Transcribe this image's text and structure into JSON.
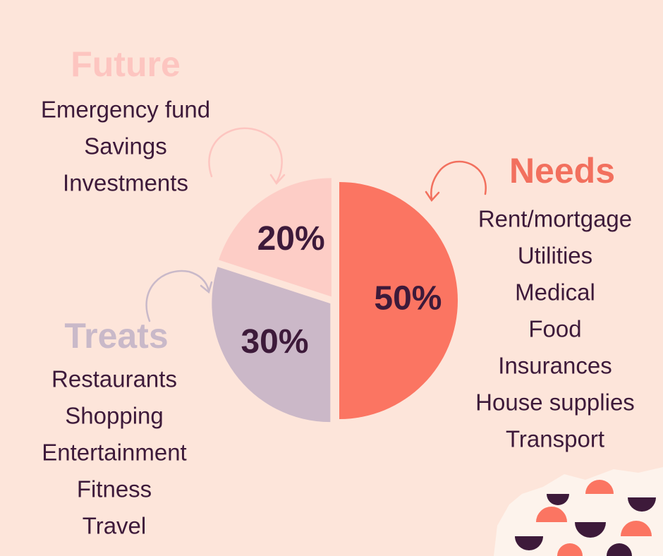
{
  "chart_data": {
    "type": "pie",
    "categories": [
      "Needs",
      "Treats",
      "Future"
    ],
    "values": [
      50,
      30,
      20
    ],
    "value_labels": [
      "50%",
      "30%",
      "20%"
    ],
    "colors": [
      "#fb7562",
      "#cbb8c8",
      "#fdcdc6"
    ],
    "label_colors": [
      "#f2705e",
      "#c9b9c9",
      "#fdc5c0"
    ],
    "items": [
      [
        "Rent/mortgage",
        "Utilities",
        "Medical",
        "Food",
        "Insurances",
        "House supplies",
        "Transport"
      ],
      [
        "Restaurants",
        "Shopping",
        "Entertainment",
        "Fitness",
        "Travel"
      ],
      [
        "Emergency fund",
        "Savings",
        "Investments"
      ]
    ]
  }
}
